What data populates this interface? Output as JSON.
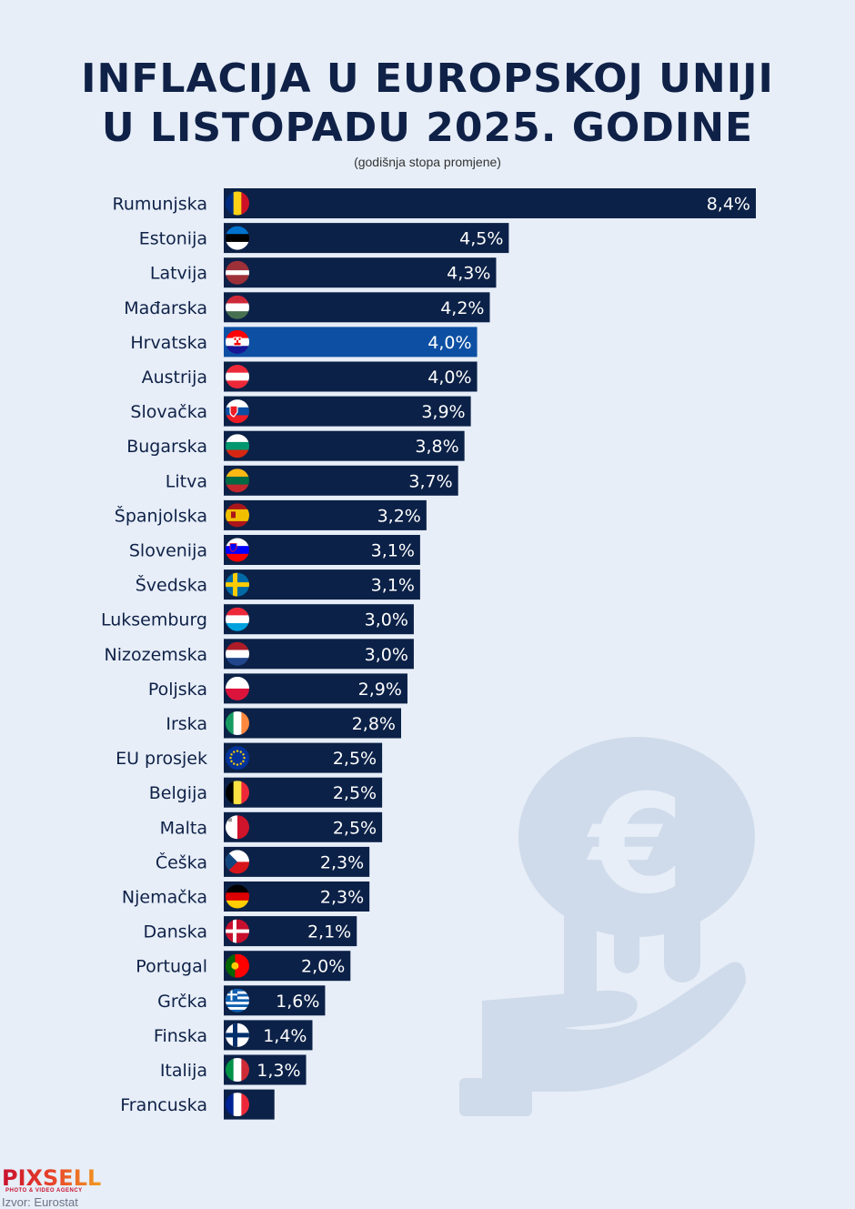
{
  "header": {
    "title_line1": "INFLACIJA U EUROPSKOJ UNIJI",
    "title_line2": "U LISTOPADU 2025. GODINE",
    "subtitle": "(godišnja stopa promjene)"
  },
  "footer": {
    "logo": "PIXSELL",
    "logo_sub": "PHOTO & VIDEO AGENCY",
    "source": "Izvor: Eurostat"
  },
  "colors": {
    "bar": "#0c2147",
    "highlight_bar": "#0d4fa3",
    "label_text": "#0f2147",
    "value_text": "#ffffff",
    "background": "#e7eef8",
    "illustration": "#cfdbea"
  },
  "chart_data": {
    "type": "bar",
    "orientation": "horizontal",
    "title": "INFLACIJA U EUROPSKOJ UNIJI U LISTOPADU 2025. GODINE",
    "subtitle": "(godišnja stopa promjene)",
    "unit": "%",
    "highlight": "Hrvatska",
    "categories": [
      "Rumunjska",
      "Estonija",
      "Latvija",
      "Mađarska",
      "Hrvatska",
      "Austrija",
      "Slovačka",
      "Bugarska",
      "Litva",
      "Španjolska",
      "Slovenija",
      "Švedska",
      "Luksemburg",
      "Nizozemska",
      "Poljska",
      "Irska",
      "EU prosjek",
      "Belgija",
      "Malta",
      "Češka",
      "Njemačka",
      "Danska",
      "Portugal",
      "Grčka",
      "Finska",
      "Italija",
      "Francuska"
    ],
    "values": [
      8.4,
      4.5,
      4.3,
      4.2,
      4.0,
      4.0,
      3.9,
      3.8,
      3.7,
      3.2,
      3.1,
      3.1,
      3.0,
      3.0,
      2.9,
      2.8,
      2.5,
      2.5,
      2.5,
      2.3,
      2.3,
      2.1,
      2.0,
      1.6,
      1.4,
      1.3,
      0.8
    ],
    "value_labels": [
      "8,4%",
      "4,5%",
      "4,3%",
      "4,2%",
      "4,0%",
      "4,0%",
      "3,9%",
      "3,8%",
      "3,7%",
      "3,2%",
      "3,1%",
      "3,1%",
      "3,0%",
      "3,0%",
      "2,9%",
      "2,8%",
      "2,5%",
      "2,5%",
      "2,5%",
      "2,3%",
      "2,3%",
      "2,1%",
      "2,0%",
      "1,6%",
      "1,4%",
      "1,3%",
      ""
    ],
    "flags": [
      "ro",
      "ee",
      "lv",
      "hu",
      "hr",
      "at",
      "sk",
      "bg",
      "lt",
      "es",
      "si",
      "se",
      "lu",
      "nl",
      "pl",
      "ie",
      "eu",
      "be",
      "mt",
      "cz",
      "de",
      "dk",
      "pt",
      "gr",
      "fi",
      "it",
      "fr"
    ],
    "xlim": [
      0,
      8.4
    ],
    "grid": false,
    "legend": "none"
  }
}
